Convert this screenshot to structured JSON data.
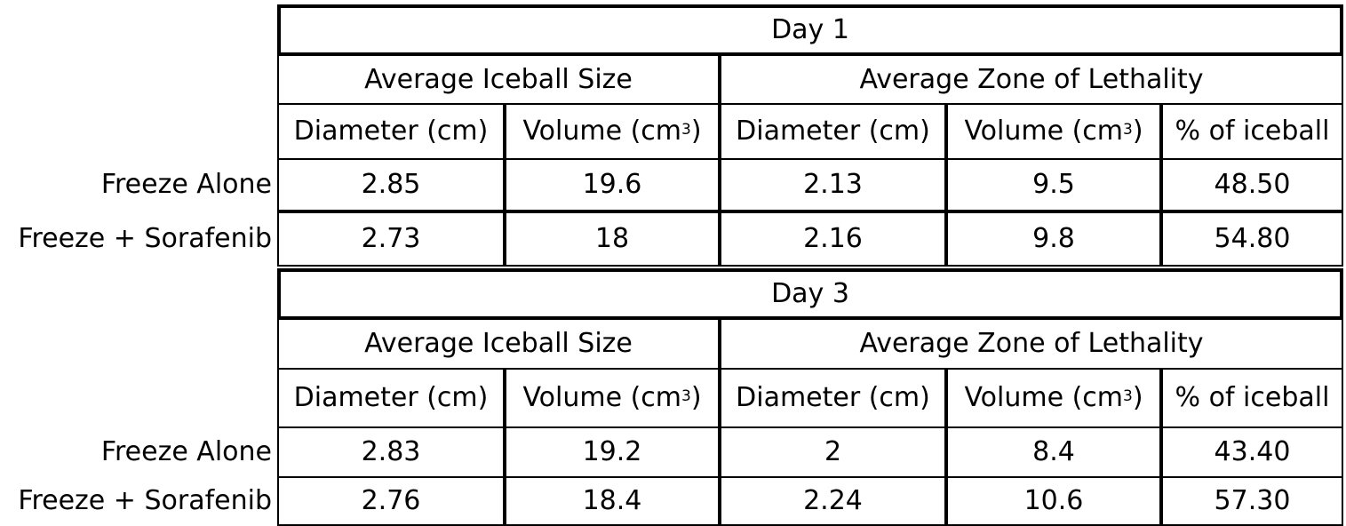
{
  "tables": [
    {
      "title": "Day 1",
      "groups": {
        "iceball": "Average Iceball Size",
        "lethality": "Average Zone of Lethality"
      },
      "columns": {
        "diameter": "Diameter (cm)",
        "volume_prefix": "Volume (cm",
        "volume_sup": "3",
        "volume_suffix": ")",
        "percent": "% of iceball"
      },
      "rows": [
        {
          "label": "Freeze Alone",
          "values": [
            "2.85",
            "19.6",
            "2.13",
            "9.5",
            "48.50"
          ]
        },
        {
          "label": "Freeze + Sorafenib",
          "values": [
            "2.73",
            "18",
            "2.16",
            "9.8",
            "54.80"
          ]
        }
      ]
    },
    {
      "title": "Day 3",
      "groups": {
        "iceball": "Average Iceball Size",
        "lethality": "Average Zone of Lethality"
      },
      "columns": {
        "diameter": "Diameter (cm)",
        "volume_prefix": "Volume (cm",
        "volume_sup": "3",
        "volume_suffix": ")",
        "percent": "% of iceball"
      },
      "rows": [
        {
          "label": "Freeze Alone",
          "values": [
            "2.83",
            "19.2",
            "2",
            "8.4",
            "43.40"
          ]
        },
        {
          "label": "Freeze + Sorafenib",
          "values": [
            "2.76",
            "18.4",
            "2.24",
            "10.6",
            "57.30"
          ]
        }
      ]
    }
  ]
}
